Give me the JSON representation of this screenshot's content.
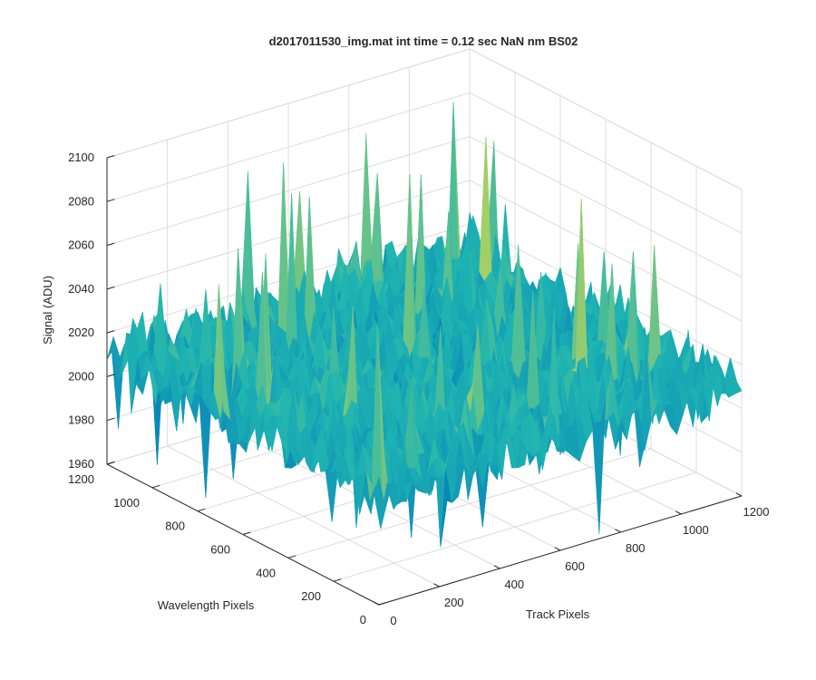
{
  "chart_data": {
    "type": "surface",
    "title": "d2017011530_img.mat int time = 0.12 sec  NaN nm BS02",
    "xlabel": "Track Pixels",
    "ylabel": "Wavelength Pixels",
    "zlabel": "Signal (ADU)",
    "xlim": [
      0,
      1200
    ],
    "ylim": [
      0,
      1200
    ],
    "zlim": [
      1960,
      2100
    ],
    "xticks": [
      "0",
      "200",
      "400",
      "600",
      "800",
      "1000",
      "1200"
    ],
    "yticks": [
      "0",
      "200",
      "400",
      "600",
      "800",
      "1000",
      "1200"
    ],
    "zticks": [
      "1960",
      "1980",
      "2000",
      "2020",
      "2040",
      "2060",
      "2080",
      "2100"
    ],
    "grid": true,
    "colormap": "parula",
    "surface_summary": {
      "mean_signal": 2010,
      "typical_noise_range": [
        1985,
        2045
      ],
      "max_spike": 2092,
      "min_spike": 1963
    },
    "colors": {
      "low": "#0072bd",
      "mid": "#1fb5b1",
      "high": "#d8d84a"
    }
  }
}
